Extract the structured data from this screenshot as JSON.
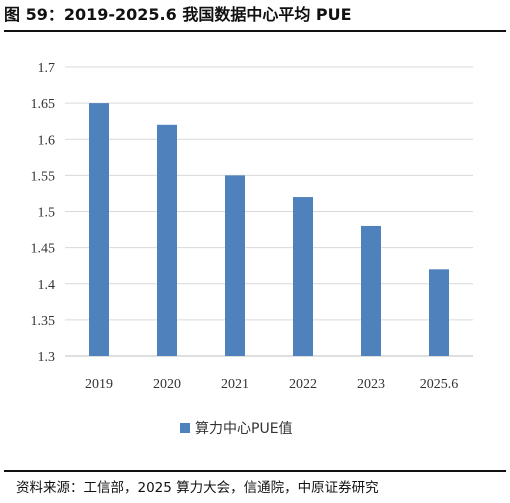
{
  "figure": {
    "title": "图 59：2019-2025.6 我国数据中心平均 PUE",
    "source": "资料来源：工信部，2025 算力大会，信通院，中原证券研究"
  },
  "chart_data": {
    "type": "bar",
    "title": "",
    "xlabel": "",
    "ylabel": "",
    "categories": [
      "2019",
      "2020",
      "2021",
      "2022",
      "2023",
      "2025.6"
    ],
    "series": [
      {
        "name": "算力中心PUE值",
        "values": [
          1.65,
          1.62,
          1.55,
          1.52,
          1.48,
          1.42
        ],
        "color": "#4f81bd"
      }
    ],
    "ylim": [
      1.3,
      1.7
    ],
    "yticks": [
      "1.3",
      "1.35",
      "1.4",
      "1.45",
      "1.5",
      "1.55",
      "1.6",
      "1.65",
      "1.7"
    ],
    "grid": true,
    "legend_position": "bottom-left",
    "colors": {
      "bar": "#4f81bd",
      "grid": "#d9d9d9",
      "axis": "#bfbfbf"
    }
  }
}
